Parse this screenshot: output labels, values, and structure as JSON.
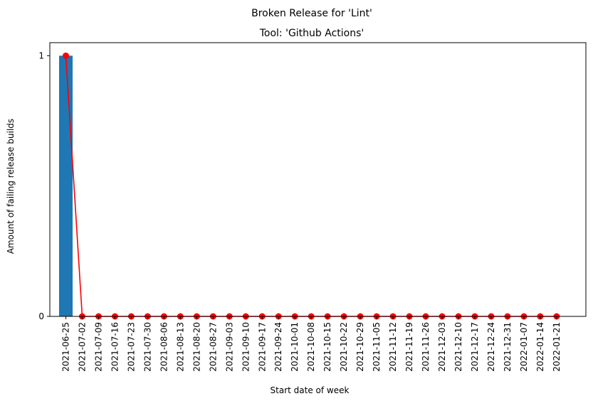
{
  "figure": {
    "suptitle": "Broken Release for 'Lint'"
  },
  "chart_data": {
    "type": "bar",
    "title": "Tool: 'Github Actions'",
    "xlabel": "Start date of week",
    "ylabel": "Amount of failing release builds",
    "categories": [
      "2021-06-25",
      "2021-07-02",
      "2021-07-09",
      "2021-07-16",
      "2021-07-23",
      "2021-07-30",
      "2021-08-06",
      "2021-08-13",
      "2021-08-20",
      "2021-08-27",
      "2021-09-03",
      "2021-09-10",
      "2021-09-17",
      "2021-09-24",
      "2021-10-01",
      "2021-10-08",
      "2021-10-15",
      "2021-10-22",
      "2021-10-29",
      "2021-11-05",
      "2021-11-12",
      "2021-11-19",
      "2021-11-26",
      "2021-12-03",
      "2021-12-10",
      "2021-12-17",
      "2021-12-24",
      "2021-12-31",
      "2022-01-07",
      "2022-01-14",
      "2022-01-21"
    ],
    "series": [
      {
        "kind": "bar",
        "color": "#1f77b4",
        "values": [
          1,
          0,
          0,
          0,
          0,
          0,
          0,
          0,
          0,
          0,
          0,
          0,
          0,
          0,
          0,
          0,
          0,
          0,
          0,
          0,
          0,
          0,
          0,
          0,
          0,
          0,
          0,
          0,
          0,
          0,
          0
        ]
      },
      {
        "kind": "line",
        "marker": "circle",
        "color": "#ff0000",
        "values": [
          1,
          0,
          0,
          0,
          0,
          0,
          0,
          0,
          0,
          0,
          0,
          0,
          0,
          0,
          0,
          0,
          0,
          0,
          0,
          0,
          0,
          0,
          0,
          0,
          0,
          0,
          0,
          0,
          0,
          0,
          0
        ]
      }
    ],
    "yticks": [
      0,
      1
    ],
    "ylim": [
      0,
      1.05
    ],
    "grid": false,
    "legend": "none"
  }
}
